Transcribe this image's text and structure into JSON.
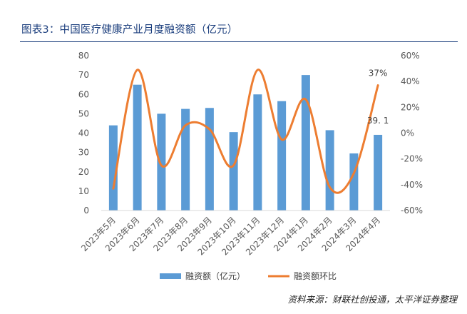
{
  "figure": {
    "title": "图表3：中国医疗健康产业月度融资额（亿元）",
    "source": "资料来源：财联社创投通，太平洋证券整理"
  },
  "colors": {
    "bar": "#5b9bd5",
    "line": "#ed7d31",
    "title": "#1b3e7d"
  },
  "chart_data": {
    "type": "bar",
    "categories": [
      "2023年5月",
      "2023年6月",
      "2023年7月",
      "2023年8月",
      "2023年9月",
      "2023年10月",
      "2023年11月",
      "2023年12月",
      "2024年1月",
      "2024年2月",
      "2024年3月",
      "2024年4月"
    ],
    "series": [
      {
        "name": "融资额（亿元）",
        "type": "bar",
        "axis": "left",
        "values": [
          44,
          65,
          50,
          52.5,
          53,
          40.5,
          60,
          56.5,
          70,
          41.5,
          29.5,
          39.1
        ]
      },
      {
        "name": "融资额环比",
        "type": "line",
        "axis": "right",
        "smooth": true,
        "values": [
          -43,
          49,
          -25,
          6,
          3,
          -25,
          49,
          -5,
          26,
          -42,
          -31,
          37
        ]
      }
    ],
    "y_left": {
      "ylim": [
        0,
        80
      ],
      "ticks": [
        "0",
        "10",
        "20",
        "30",
        "40",
        "50",
        "60",
        "70",
        "80"
      ]
    },
    "y_right": {
      "ylim": [
        -60,
        60
      ],
      "ticks": [
        "-60%",
        "-40%",
        "-20%",
        "0%",
        "20%",
        "40%",
        "60%"
      ]
    },
    "data_labels": [
      {
        "series": 0,
        "index": 11,
        "text": "39. 1"
      },
      {
        "series": 1,
        "index": 11,
        "text": "37%"
      }
    ],
    "legend": "bottom",
    "grid": false
  }
}
